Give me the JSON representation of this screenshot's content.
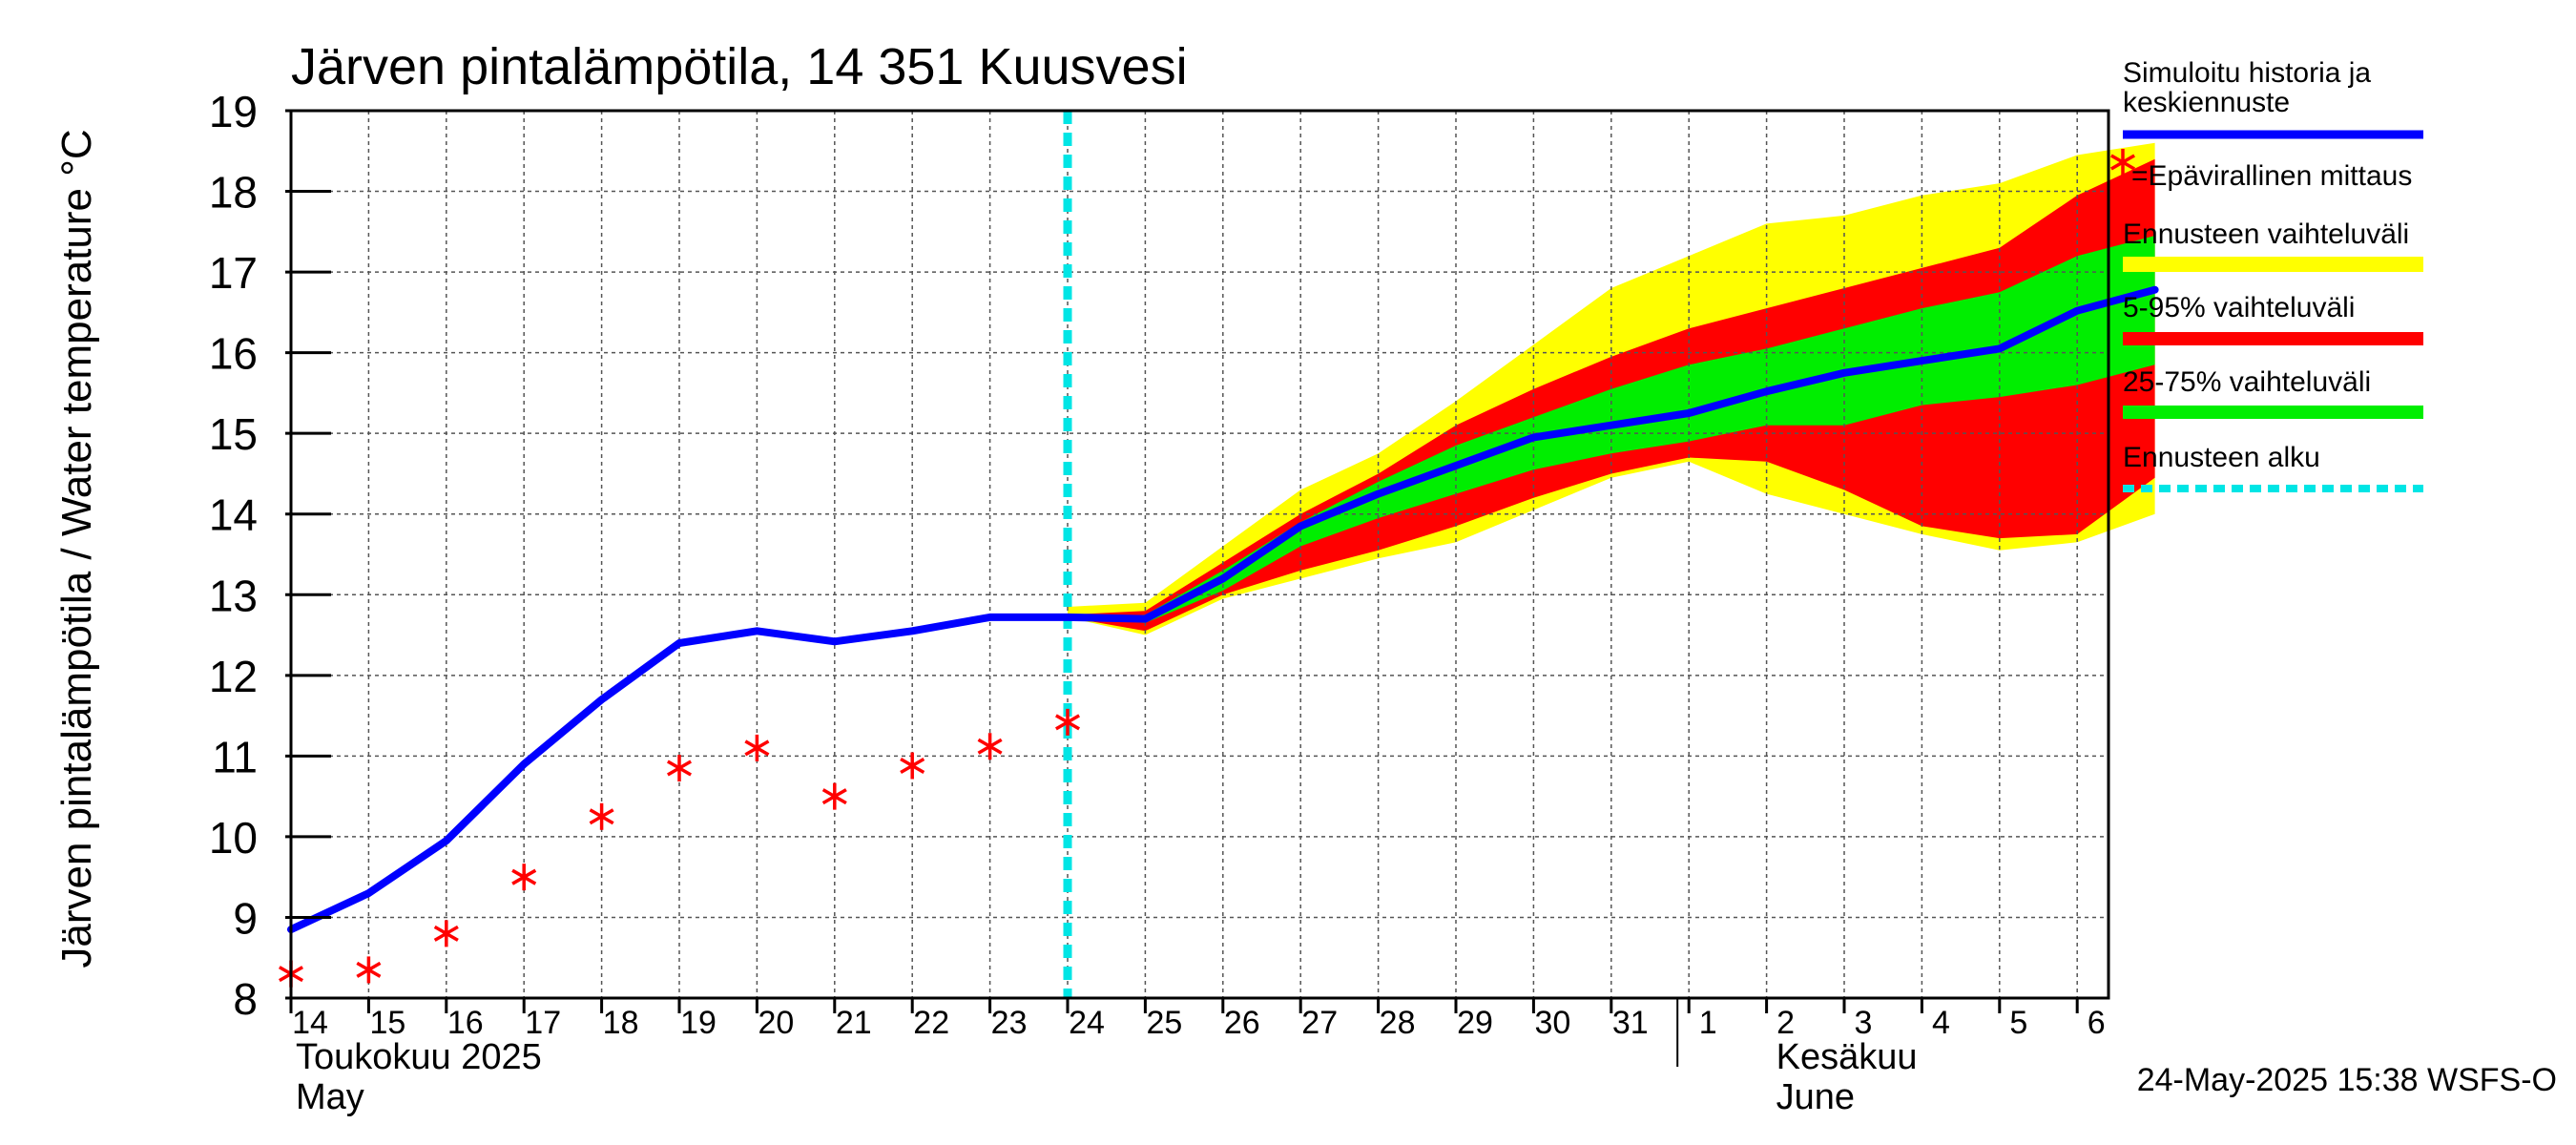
{
  "chart_data": {
    "type": "line",
    "title": "Järven pintalämpötila, 14 351 Kuusvesi",
    "ylabel": "Järven pintalämpötila / Water temperature °C",
    "xlabel": "",
    "ylim": [
      8,
      19
    ],
    "yticks": [
      8,
      9,
      10,
      11,
      12,
      13,
      14,
      15,
      16,
      17,
      18,
      19
    ],
    "grid": true,
    "legend_position": "right",
    "x_dates": [
      "2025-05-14",
      "2025-05-15",
      "2025-05-16",
      "2025-05-17",
      "2025-05-18",
      "2025-05-19",
      "2025-05-20",
      "2025-05-21",
      "2025-05-22",
      "2025-05-23",
      "2025-05-24",
      "2025-05-25",
      "2025-05-26",
      "2025-05-27",
      "2025-05-28",
      "2025-05-29",
      "2025-05-30",
      "2025-05-31",
      "2025-06-01",
      "2025-06-02",
      "2025-06-03",
      "2025-06-04",
      "2025-06-05",
      "2025-06-06",
      "2025-06-07"
    ],
    "x_tick_labels": [
      "14",
      "15",
      "16",
      "17",
      "18",
      "19",
      "20",
      "21",
      "22",
      "23",
      "24",
      "25",
      "26",
      "27",
      "28",
      "29",
      "30",
      "31",
      "1",
      "2",
      "3",
      "4",
      "5",
      "6"
    ],
    "month_labels": [
      {
        "fi": "Toukokuu  2025",
        "en": "May"
      },
      {
        "fi": "Kesäkuu",
        "en": "June"
      }
    ],
    "forecast_start_date": "2025-05-24",
    "series": [
      {
        "name": "Simuloitu historia ja keskiennuste",
        "color": "#0000ff",
        "dates": [
          "2025-05-14",
          "2025-05-15",
          "2025-05-16",
          "2025-05-17",
          "2025-05-18",
          "2025-05-19",
          "2025-05-20",
          "2025-05-21",
          "2025-05-22",
          "2025-05-23",
          "2025-05-24",
          "2025-05-25",
          "2025-05-26",
          "2025-05-27",
          "2025-05-28",
          "2025-05-29",
          "2025-05-30",
          "2025-05-31",
          "2025-06-01",
          "2025-06-02",
          "2025-06-03",
          "2025-06-04",
          "2025-06-05",
          "2025-06-06",
          "2025-06-07"
        ],
        "values": [
          8.85,
          9.3,
          9.95,
          10.9,
          11.7,
          12.4,
          12.55,
          12.42,
          12.55,
          12.72,
          12.72,
          12.7,
          13.2,
          13.85,
          14.25,
          14.6,
          14.95,
          15.1,
          15.25,
          15.52,
          15.75,
          15.9,
          16.05,
          16.52,
          16.78
        ]
      },
      {
        "name": "=Epävirallinen mittaus",
        "color": "#ff0000",
        "marker": "asterisk",
        "dates": [
          "2025-05-14",
          "2025-05-15",
          "2025-05-16",
          "2025-05-17",
          "2025-05-18",
          "2025-05-19",
          "2025-05-20",
          "2025-05-21",
          "2025-05-22",
          "2025-05-23",
          "2025-05-24"
        ],
        "values": [
          8.3,
          8.35,
          8.8,
          9.5,
          10.25,
          10.85,
          11.1,
          10.5,
          10.88,
          11.12,
          11.42
        ]
      }
    ],
    "bands": [
      {
        "name": "Ennusteen vaihteluväli",
        "color": "#ffff00",
        "dates": [
          "2025-05-24",
          "2025-05-25",
          "2025-05-26",
          "2025-05-27",
          "2025-05-28",
          "2025-05-29",
          "2025-05-30",
          "2025-05-31",
          "2025-06-01",
          "2025-06-02",
          "2025-06-03",
          "2025-06-04",
          "2025-06-05",
          "2025-06-06",
          "2025-06-07"
        ],
        "upper": [
          12.85,
          12.9,
          13.6,
          14.3,
          14.75,
          15.4,
          16.1,
          16.8,
          17.2,
          17.6,
          17.7,
          17.95,
          18.1,
          18.45,
          18.6
        ],
        "lower": [
          12.72,
          12.5,
          12.95,
          13.2,
          13.45,
          13.65,
          14.05,
          14.45,
          14.65,
          14.25,
          14.0,
          13.75,
          13.55,
          13.65,
          14.0
        ]
      },
      {
        "name": "5-95% vaihteluväli",
        "color": "#ff0000",
        "dates": [
          "2025-05-24",
          "2025-05-25",
          "2025-05-26",
          "2025-05-27",
          "2025-05-28",
          "2025-05-29",
          "2025-05-30",
          "2025-05-31",
          "2025-06-01",
          "2025-06-02",
          "2025-06-03",
          "2025-06-04",
          "2025-06-05",
          "2025-06-06",
          "2025-06-07"
        ],
        "upper": [
          12.75,
          12.8,
          13.4,
          14.0,
          14.5,
          15.1,
          15.55,
          15.95,
          16.3,
          16.55,
          16.8,
          17.05,
          17.3,
          17.95,
          18.4
        ],
        "lower": [
          12.72,
          12.55,
          13.0,
          13.3,
          13.55,
          13.85,
          14.2,
          14.5,
          14.7,
          14.65,
          14.3,
          13.85,
          13.7,
          13.75,
          14.45
        ]
      },
      {
        "name": "25-75% vaihteluväli",
        "color": "#00ee00",
        "dates": [
          "2025-05-24",
          "2025-05-25",
          "2025-05-26",
          "2025-05-27",
          "2025-05-28",
          "2025-05-29",
          "2025-05-30",
          "2025-05-31",
          "2025-06-01",
          "2025-06-02",
          "2025-06-03",
          "2025-06-04",
          "2025-06-05",
          "2025-06-06",
          "2025-06-07"
        ],
        "upper": [
          12.72,
          12.75,
          13.3,
          13.9,
          14.4,
          14.85,
          15.2,
          15.55,
          15.85,
          16.05,
          16.3,
          16.55,
          16.75,
          17.2,
          17.45
        ],
        "lower": [
          12.72,
          12.65,
          13.05,
          13.6,
          13.95,
          14.25,
          14.55,
          14.75,
          14.9,
          15.1,
          15.1,
          15.35,
          15.45,
          15.6,
          15.85
        ]
      }
    ],
    "legend": [
      {
        "label": "Simuloitu historia ja keskiennuste",
        "style": "line",
        "color": "#0000ff"
      },
      {
        "label": "=Epävirallinen mittaus",
        "style": "asterisk",
        "color": "#ff0000"
      },
      {
        "label": "Ennusteen vaihteluväli",
        "style": "band",
        "color": "#ffff00"
      },
      {
        "label": "5-95% vaihteluväli",
        "style": "band",
        "color": "#ff0000"
      },
      {
        "label": "25-75% vaihteluväli",
        "style": "band",
        "color": "#00ee00"
      },
      {
        "label": "Ennusteen alku",
        "style": "dashed",
        "color": "#00e5e5"
      }
    ],
    "timestamp": "24-May-2025 15:38 WSFS-O"
  }
}
